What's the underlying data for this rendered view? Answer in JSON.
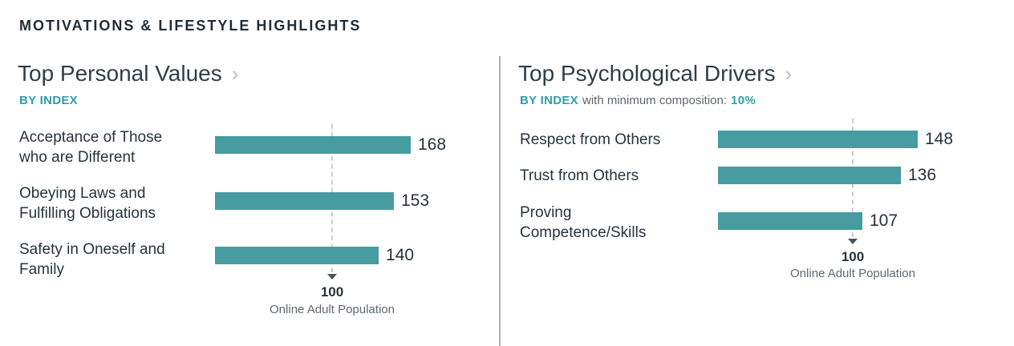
{
  "header": "MOTIVATIONS & LIFESTYLE HIGHLIGHTS",
  "colors": {
    "bar": "#469CA0",
    "teal_text": "#2F9EA7",
    "refline": "#C9CDCF"
  },
  "ui": {
    "chevron": "›",
    "left_subtitle": "BY INDEX",
    "right_subtitle_prefix": "BY INDEX",
    "right_subtitle_mid": "with minimum composition:",
    "right_subtitle_value": "10%",
    "left_rows": [
      {
        "line1": "Acceptance of Those",
        "line2": "who are Different"
      },
      {
        "line1": "Obeying Laws and",
        "line2": "Fulfilling Obligations"
      },
      {
        "line1": "Safety in Oneself and",
        "line2": "Family"
      }
    ],
    "right_rows": [
      {
        "line1": "Respect from Others",
        "line2": ""
      },
      {
        "line1": "Trust from Others",
        "line2": ""
      },
      {
        "line1": "Proving",
        "line2": "Competence/Skills"
      }
    ]
  },
  "chart_data": [
    {
      "type": "bar",
      "orientation": "horizontal",
      "title": "Top Personal Values",
      "subtitle": "BY INDEX",
      "categories": [
        "Acceptance of Those who are Different",
        "Obeying Laws and Fulfilling Obligations",
        "Safety in Oneself and Family"
      ],
      "values": [
        168,
        153,
        140
      ],
      "reference_line": {
        "value": 100,
        "label": "Online Adult Population"
      },
      "xlim": [
        0,
        200
      ],
      "grid": false,
      "legend": false
    },
    {
      "type": "bar",
      "orientation": "horizontal",
      "title": "Top Psychological Drivers",
      "subtitle": "BY INDEX with minimum composition: 10%",
      "categories": [
        "Respect from Others",
        "Trust from Others",
        "Proving Competence/Skills"
      ],
      "values": [
        148,
        136,
        107
      ],
      "reference_line": {
        "value": 100,
        "label": "Online Adult Population"
      },
      "xlim": [
        0,
        200
      ],
      "grid": false,
      "legend": false
    }
  ]
}
